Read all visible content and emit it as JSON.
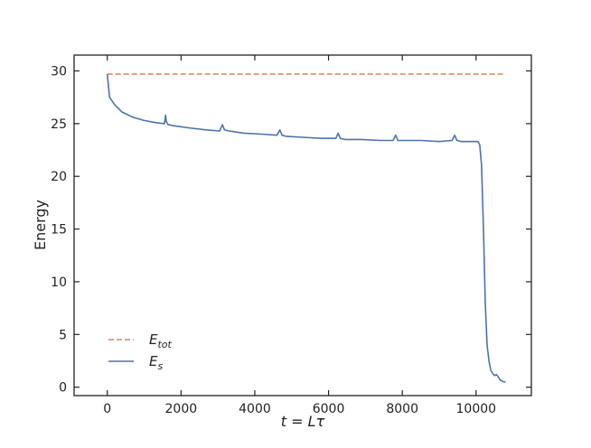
{
  "chart_data": {
    "type": "line",
    "title": "",
    "xlabel": "t = Lτ",
    "ylabel": "Energy",
    "xlim": [
      -900,
      11500
    ],
    "ylim": [
      -0.8,
      31.5
    ],
    "xticks": [
      0,
      2000,
      4000,
      6000,
      8000,
      10000
    ],
    "yticks": [
      0,
      5,
      10,
      15,
      20,
      25,
      30
    ],
    "grid": false,
    "legend_position": "lower-left",
    "series": [
      {
        "name": "E_tot",
        "legend_main": "E",
        "legend_sub": "tot",
        "style": "dashed",
        "color": "#dd8452",
        "x": [
          0,
          10800
        ],
        "y": [
          29.7,
          29.7
        ]
      },
      {
        "name": "E_s",
        "legend_main": "E",
        "legend_sub": "s",
        "style": "solid",
        "color": "#4c72b0",
        "x": [
          0,
          60,
          200,
          400,
          700,
          1000,
          1300,
          1550,
          1580,
          1600,
          1650,
          1800,
          2200,
          2700,
          3050,
          3120,
          3180,
          3300,
          3700,
          4200,
          4600,
          4680,
          4740,
          4850,
          5300,
          5800,
          6200,
          6260,
          6320,
          6450,
          6900,
          7400,
          7750,
          7820,
          7880,
          8000,
          8500,
          9000,
          9350,
          9420,
          9480,
          9600,
          9900,
          10050,
          10100,
          10150,
          10200,
          10250,
          10300,
          10350,
          10400,
          10450,
          10500,
          10550,
          10600,
          10650,
          10700,
          10750,
          10800
        ],
        "y": [
          29.7,
          27.5,
          26.8,
          26.1,
          25.6,
          25.3,
          25.1,
          25.0,
          25.8,
          25.2,
          24.9,
          24.8,
          24.6,
          24.4,
          24.3,
          24.9,
          24.4,
          24.3,
          24.1,
          24.0,
          23.9,
          24.4,
          23.9,
          23.8,
          23.7,
          23.6,
          23.6,
          24.1,
          23.6,
          23.5,
          23.5,
          23.4,
          23.4,
          23.9,
          23.4,
          23.4,
          23.4,
          23.3,
          23.4,
          23.9,
          23.4,
          23.3,
          23.3,
          23.3,
          23.0,
          21.0,
          15.0,
          8.0,
          4.0,
          2.5,
          1.6,
          1.3,
          1.1,
          1.2,
          1.0,
          0.7,
          0.6,
          0.5,
          0.5
        ]
      }
    ]
  }
}
